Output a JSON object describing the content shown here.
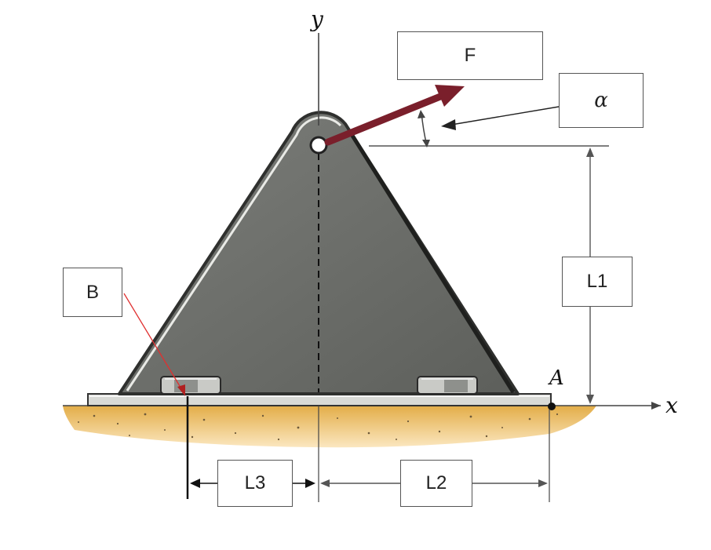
{
  "labels": {
    "force": "F",
    "angle": "α",
    "height": "L1",
    "right_dim": "L2",
    "left_dim": "L3",
    "bolt_point": "B",
    "corner_point": "A",
    "x_axis": "x",
    "y_axis": "y"
  },
  "colors": {
    "bracket_fill": "#6d6f6b",
    "bracket_edge": "#2f302e",
    "force_arrow": "#7a1f2b",
    "ground": "#e8b655",
    "leader_b": "#e03030"
  }
}
